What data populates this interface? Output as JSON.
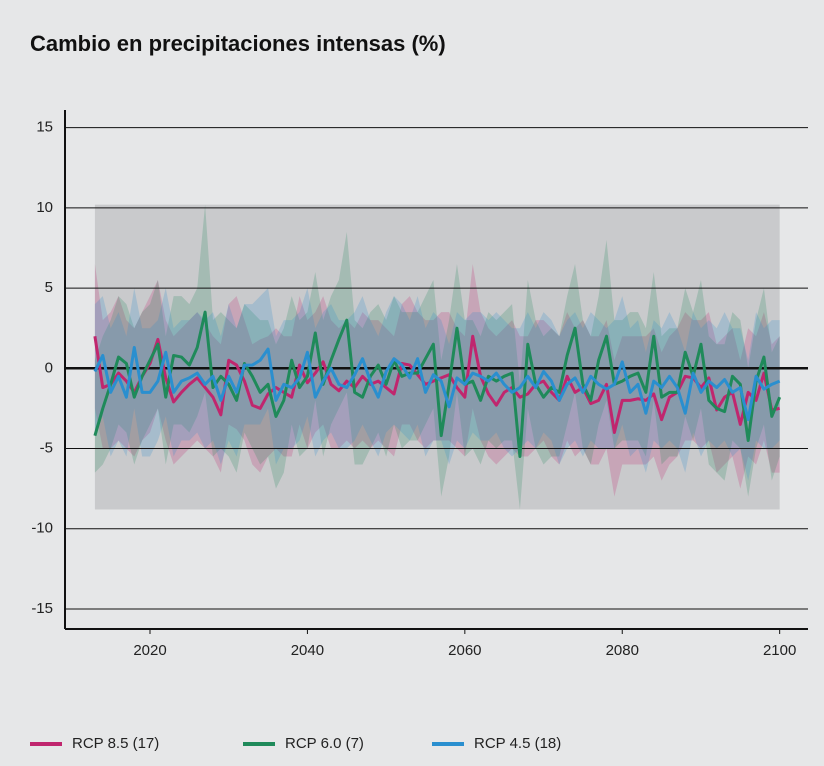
{
  "chart_data": {
    "type": "line",
    "title": "Cambio en precipitaciones intensas (%)",
    "x": [
      2013,
      2014,
      2015,
      2016,
      2017,
      2018,
      2019,
      2020,
      2021,
      2022,
      2023,
      2024,
      2025,
      2026,
      2027,
      2028,
      2029,
      2030,
      2031,
      2032,
      2033,
      2034,
      2035,
      2036,
      2037,
      2038,
      2039,
      2040,
      2041,
      2042,
      2043,
      2044,
      2045,
      2046,
      2047,
      2048,
      2049,
      2050,
      2051,
      2052,
      2053,
      2054,
      2055,
      2056,
      2057,
      2058,
      2059,
      2060,
      2061,
      2062,
      2063,
      2064,
      2065,
      2066,
      2067,
      2068,
      2069,
      2070,
      2071,
      2072,
      2073,
      2074,
      2075,
      2076,
      2077,
      2078,
      2079,
      2080,
      2081,
      2082,
      2083,
      2084,
      2085,
      2086,
      2087,
      2088,
      2089,
      2090,
      2091,
      2092,
      2093,
      2094,
      2095,
      2096,
      2097,
      2098,
      2099,
      2100
    ],
    "series": [
      {
        "name": "RCP 8.5 (17)",
        "color": "#c0266e",
        "values": [
          2.0,
          -1.2,
          -1.0,
          -0.3,
          -0.8,
          -1.5,
          -0.5,
          0.3,
          1.8,
          -0.6,
          -2.1,
          -1.5,
          -1.0,
          -0.6,
          -1.2,
          -1.8,
          -2.9,
          0.5,
          0.2,
          -0.8,
          -2.3,
          -2.5,
          -1.6,
          -1.2,
          -1.5,
          -1.8,
          0.2,
          -0.9,
          -0.3,
          0.4,
          -1.0,
          -1.4,
          -0.8,
          -1.2,
          -0.5,
          -1.0,
          -0.8,
          -1.2,
          -1.6,
          0.3,
          0.2,
          -0.4,
          -1.0,
          -0.8,
          -0.6,
          -0.4,
          -1.2,
          -1.8,
          2.0,
          -0.5,
          -1.6,
          -2.3,
          -1.5,
          -1.2,
          -1.8,
          -1.6,
          -1.0,
          -0.8,
          -1.5,
          -2.0,
          -0.5,
          -1.5,
          -1.2,
          -2.2,
          -2.0,
          -1.0,
          -4.0,
          -2.0,
          -2.0,
          -1.9,
          -2.0,
          -1.6,
          -3.2,
          -1.8,
          -1.5,
          -0.5,
          -0.6,
          -1.2,
          -0.6,
          -2.6,
          -1.8,
          -1.5,
          -3.5,
          -1.5,
          -2.0,
          -0.3,
          -2.6,
          -2.5
        ],
        "high": [
          6.5,
          3.0,
          3.5,
          4.5,
          3.0,
          2.5,
          3.5,
          4.5,
          5.5,
          3.0,
          2.0,
          2.5,
          3.0,
          3.5,
          2.8,
          2.0,
          1.5,
          4.0,
          4.5,
          3.0,
          1.5,
          1.8,
          2.0,
          2.5,
          2.0,
          2.0,
          4.5,
          3.0,
          3.5,
          4.5,
          3.0,
          2.5,
          3.0,
          2.5,
          3.5,
          3.0,
          3.0,
          2.5,
          2.0,
          4.0,
          4.5,
          3.5,
          3.0,
          3.0,
          3.5,
          3.5,
          2.5,
          2.0,
          6.5,
          3.5,
          2.5,
          2.0,
          2.5,
          3.0,
          2.0,
          2.0,
          3.0,
          3.0,
          2.5,
          2.0,
          3.5,
          2.5,
          3.0,
          2.0,
          2.0,
          3.0,
          0.5,
          2.0,
          2.0,
          2.0,
          2.0,
          2.5,
          1.0,
          2.0,
          2.5,
          3.5,
          3.0,
          3.0,
          3.5,
          1.5,
          2.0,
          2.5,
          0.5,
          2.5,
          2.0,
          3.5,
          1.5,
          2.0
        ],
        "low": [
          -2.5,
          -5.0,
          -5.0,
          -4.5,
          -5.0,
          -5.5,
          -4.5,
          -4.0,
          -2.5,
          -4.5,
          -6.0,
          -5.5,
          -5.0,
          -4.5,
          -5.0,
          -5.5,
          -6.5,
          -3.5,
          -3.8,
          -4.5,
          -6.0,
          -6.5,
          -5.5,
          -5.0,
          -5.5,
          -5.5,
          -3.5,
          -5.0,
          -4.0,
          -3.5,
          -5.0,
          -5.0,
          -4.5,
          -5.0,
          -4.5,
          -5.0,
          -4.5,
          -5.0,
          -5.5,
          -3.5,
          -3.5,
          -4.5,
          -5.0,
          -4.5,
          -4.5,
          -4.5,
          -5.0,
          -5.5,
          -2.5,
          -4.5,
          -5.5,
          -6.0,
          -5.5,
          -5.0,
          -5.5,
          -5.5,
          -5.0,
          -4.5,
          -5.5,
          -6.0,
          -4.5,
          -5.5,
          -5.0,
          -6.0,
          -6.0,
          -5.0,
          -8.0,
          -6.0,
          -6.0,
          -6.0,
          -6.0,
          -5.5,
          -7.0,
          -6.0,
          -5.5,
          -4.5,
          -4.5,
          -5.0,
          -4.5,
          -6.5,
          -6.0,
          -5.5,
          -7.5,
          -5.5,
          -6.0,
          -4.5,
          -6.5,
          -6.5
        ]
      },
      {
        "name": "RCP 6.0 (7)",
        "color": "#1f8a5a",
        "values": [
          -4.2,
          -2.5,
          -1.0,
          0.7,
          0.3,
          -1.8,
          -0.5,
          0.5,
          1.5,
          -1.8,
          0.8,
          0.7,
          0.2,
          1.3,
          3.5,
          -1.2,
          -0.5,
          -1.0,
          -2.0,
          0.3,
          -0.5,
          -1.5,
          -1.0,
          -3.0,
          -2.0,
          0.5,
          -1.2,
          -0.5,
          2.2,
          -1.0,
          0.5,
          1.8,
          3.0,
          -1.5,
          -1.8,
          -0.5,
          0.2,
          -1.0,
          0.5,
          -0.5,
          -0.3,
          -0.3,
          0.6,
          1.5,
          -4.2,
          -1.0,
          2.5,
          -1.0,
          -0.8,
          -2.0,
          -0.5,
          -0.8,
          -0.5,
          -0.3,
          -5.5,
          1.5,
          -1.0,
          -1.8,
          -1.2,
          -1.5,
          0.8,
          2.5,
          -1.0,
          -2.0,
          0.5,
          2.0,
          -1.0,
          -0.8,
          -0.5,
          -0.3,
          -1.5,
          2.0,
          -1.8,
          -1.5,
          -1.5,
          1.0,
          -0.5,
          1.5,
          -2.0,
          -2.5,
          -2.7,
          -0.5,
          -1.0,
          -4.5,
          -0.8,
          0.7,
          -3.0,
          -1.8
        ],
        "high": [
          0.5,
          2.0,
          3.0,
          4.5,
          4.0,
          2.5,
          3.5,
          4.0,
          5.5,
          2.0,
          4.5,
          4.5,
          4.0,
          5.0,
          10.2,
          3.0,
          3.5,
          3.0,
          2.5,
          4.0,
          3.5,
          3.0,
          3.0,
          1.5,
          2.5,
          4.5,
          3.0,
          3.5,
          6.0,
          3.0,
          4.5,
          5.5,
          8.5,
          3.0,
          2.5,
          3.5,
          4.0,
          3.0,
          4.5,
          3.5,
          3.5,
          3.5,
          4.5,
          5.5,
          0.5,
          3.0,
          6.5,
          3.0,
          3.0,
          2.0,
          3.5,
          3.0,
          3.5,
          4.0,
          -1.0,
          5.5,
          3.0,
          2.0,
          2.5,
          2.0,
          4.5,
          6.5,
          3.0,
          2.0,
          4.5,
          8.0,
          3.0,
          3.0,
          3.5,
          3.5,
          2.5,
          6.0,
          2.0,
          2.5,
          2.5,
          5.0,
          3.5,
          5.5,
          2.0,
          1.5,
          1.5,
          3.5,
          3.0,
          0.0,
          3.0,
          5.0,
          1.0,
          2.0
        ],
        "low": [
          -6.5,
          -6.0,
          -5.0,
          -3.5,
          -4.0,
          -6.0,
          -4.5,
          -3.5,
          -2.5,
          -6.0,
          -3.5,
          -3.5,
          -4.0,
          -3.0,
          -1.5,
          -5.5,
          -5.0,
          -5.5,
          -6.5,
          -4.0,
          -5.0,
          -6.0,
          -5.5,
          -7.5,
          -6.5,
          -3.5,
          -5.5,
          -5.0,
          -2.0,
          -5.5,
          -3.5,
          -2.5,
          -1.5,
          -6.0,
          -6.0,
          -5.0,
          -4.0,
          -5.5,
          -3.5,
          -5.0,
          -4.5,
          -4.5,
          -3.5,
          -2.5,
          -8.0,
          -5.5,
          -1.5,
          -5.5,
          -5.0,
          -6.0,
          -4.5,
          -5.0,
          -4.5,
          -4.5,
          -8.8,
          -2.5,
          -5.0,
          -6.0,
          -5.5,
          -5.5,
          -3.5,
          -1.5,
          -5.0,
          -6.0,
          -3.5,
          -2.0,
          -5.0,
          -4.5,
          -4.5,
          -4.5,
          -5.5,
          -2.0,
          -6.0,
          -5.5,
          -5.5,
          -3.0,
          -4.5,
          -2.5,
          -6.0,
          -6.5,
          -7.0,
          -4.5,
          -5.0,
          -8.0,
          -5.0,
          -3.5,
          -7.0,
          -5.5
        ]
      },
      {
        "name": "RCP 4.5 (18)",
        "color": "#2a8fcf",
        "values": [
          -0.2,
          0.8,
          -1.5,
          -0.5,
          -1.8,
          1.3,
          -1.5,
          -1.5,
          -0.8,
          1.0,
          -1.5,
          -0.8,
          -0.6,
          -0.3,
          -1.0,
          -0.5,
          -2.0,
          -0.5,
          -1.5,
          0.2,
          0.2,
          0.5,
          1.2,
          -2.0,
          -1.0,
          -1.2,
          -0.6,
          1.0,
          -1.8,
          -0.8,
          0.0,
          -1.0,
          -1.2,
          -0.4,
          0.6,
          -0.8,
          -1.8,
          -0.2,
          0.6,
          0.2,
          -0.6,
          0.6,
          -1.5,
          -0.4,
          -0.8,
          -2.4,
          -0.6,
          -1.0,
          -0.3,
          -0.5,
          -0.8,
          -0.3,
          -1.0,
          -1.5,
          -1.2,
          -0.5,
          -1.2,
          -0.2,
          -0.8,
          -2.0,
          -1.0,
          -0.6,
          -1.5,
          -0.5,
          -1.0,
          -1.3,
          -1.0,
          0.4,
          -1.5,
          -1.0,
          -2.8,
          -0.8,
          -1.2,
          -0.5,
          -1.2,
          -2.8,
          -0.3,
          -1.5,
          -0.8,
          -1.2,
          -0.7,
          -1.5,
          -1.2,
          -3.2,
          -0.5,
          -1.3,
          -1.0,
          -0.8
        ],
        "high": [
          4.0,
          4.5,
          2.5,
          3.5,
          2.0,
          5.0,
          2.5,
          2.5,
          3.0,
          5.0,
          2.5,
          3.0,
          3.0,
          3.5,
          3.0,
          3.5,
          2.0,
          4.0,
          2.5,
          4.0,
          4.0,
          4.5,
          5.0,
          2.0,
          3.0,
          3.0,
          3.5,
          5.0,
          2.5,
          3.5,
          4.0,
          3.0,
          3.0,
          3.5,
          4.5,
          3.0,
          2.0,
          3.5,
          4.5,
          4.0,
          3.0,
          4.5,
          2.5,
          3.5,
          3.0,
          1.5,
          3.5,
          3.0,
          3.5,
          3.5,
          3.0,
          3.5,
          3.0,
          2.5,
          2.5,
          3.5,
          2.5,
          3.5,
          3.0,
          2.0,
          3.0,
          3.5,
          2.5,
          3.5,
          3.0,
          2.5,
          3.0,
          4.5,
          2.5,
          3.0,
          1.0,
          3.0,
          2.5,
          3.5,
          2.5,
          1.0,
          3.5,
          2.5,
          3.0,
          2.5,
          3.5,
          2.5,
          2.5,
          0.5,
          3.5,
          2.5,
          3.0,
          3.0
        ],
        "low": [
          -4.0,
          -3.0,
          -5.5,
          -4.5,
          -5.5,
          -2.5,
          -5.5,
          -5.5,
          -4.5,
          -3.0,
          -5.5,
          -4.5,
          -4.5,
          -4.0,
          -5.0,
          -4.5,
          -6.0,
          -4.5,
          -5.5,
          -3.5,
          -3.5,
          -3.5,
          -2.5,
          -6.0,
          -5.0,
          -5.0,
          -4.5,
          -3.0,
          -5.5,
          -4.5,
          -4.0,
          -5.0,
          -5.0,
          -4.5,
          -3.5,
          -4.5,
          -5.5,
          -4.0,
          -3.5,
          -4.0,
          -4.5,
          -3.5,
          -5.5,
          -4.5,
          -4.5,
          -6.0,
          -4.5,
          -5.0,
          -4.0,
          -4.5,
          -4.5,
          -4.0,
          -5.0,
          -5.5,
          -5.0,
          -4.5,
          -5.0,
          -4.0,
          -4.5,
          -6.0,
          -5.0,
          -4.5,
          -5.5,
          -4.5,
          -5.0,
          -5.0,
          -5.0,
          -3.5,
          -5.5,
          -5.0,
          -6.5,
          -4.5,
          -5.0,
          -4.5,
          -5.0,
          -6.5,
          -4.0,
          -5.5,
          -4.5,
          -5.0,
          -4.5,
          -5.5,
          -5.0,
          -7.0,
          -4.5,
          -5.0,
          -5.0,
          -4.5
        ]
      }
    ],
    "variability_band": {
      "x": [
        2013,
        2100
      ],
      "y": [
        -8.8,
        10.2
      ],
      "color": "#c9cacc"
    },
    "xlim": [
      2009.2,
      2103.6
    ],
    "ylim": [
      -16.25,
      16.1
    ],
    "xticks": [
      2020,
      2040,
      2060,
      2080,
      2100
    ],
    "yticks": [
      -15,
      -10,
      -5,
      0,
      5,
      10,
      15
    ],
    "grid": true,
    "legend": "bottom-left"
  }
}
